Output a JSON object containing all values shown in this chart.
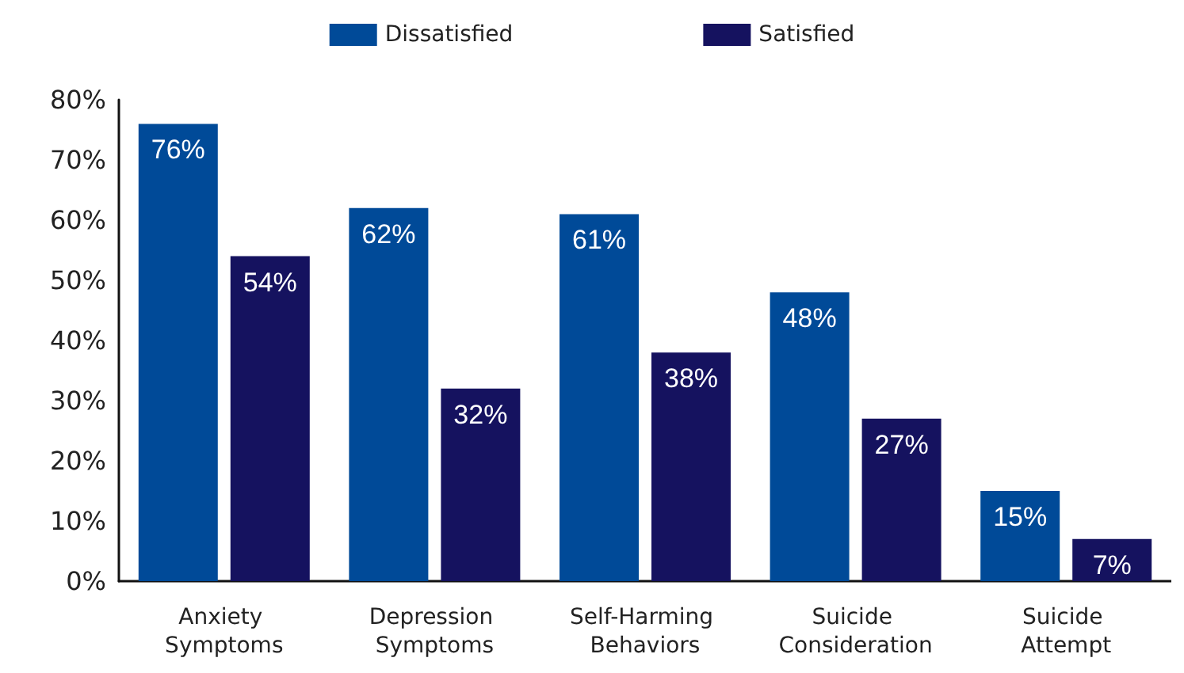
{
  "chart_data": {
    "type": "bar",
    "categories": [
      "Anxiety Symptoms",
      "Depression Symptoms",
      "Self-Harming Behaviors",
      "Suicide Consideration",
      "Suicide Attempt"
    ],
    "series": [
      {
        "name": "Dissatisfied",
        "color": "#004a98",
        "values": [
          76,
          62,
          61,
          48,
          15
        ],
        "value_labels": [
          "76%",
          "62%",
          "61%",
          "48%",
          "15%"
        ]
      },
      {
        "name": "Satisfied",
        "color": "#15125f",
        "values": [
          54,
          32,
          38,
          27,
          7
        ],
        "value_labels": [
          "54%",
          "32%",
          "38%",
          "27%",
          "7%"
        ]
      }
    ],
    "ylim": [
      0,
      80
    ],
    "yticks": [
      {
        "value": 0,
        "label": "0%"
      },
      {
        "value": 10,
        "label": "10%"
      },
      {
        "value": 20,
        "label": "20%"
      },
      {
        "value": 30,
        "label": "30%"
      },
      {
        "value": 40,
        "label": "40%"
      },
      {
        "value": 50,
        "label": "50%"
      },
      {
        "value": 60,
        "label": "60%"
      },
      {
        "value": 70,
        "label": "70%"
      },
      {
        "value": 80,
        "label": "80%"
      }
    ],
    "grid": false,
    "legend": "top"
  }
}
